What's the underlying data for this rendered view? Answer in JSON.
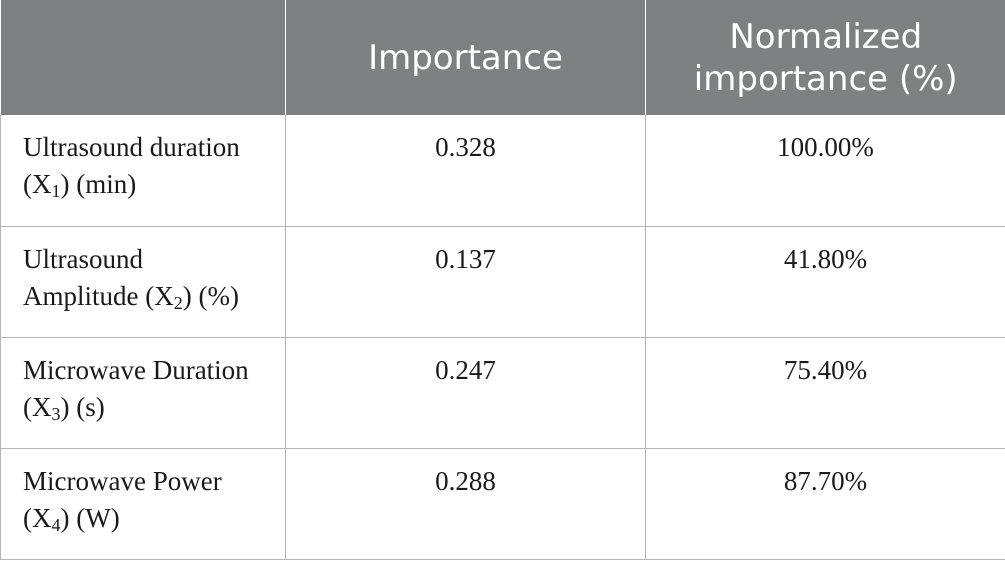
{
  "table": {
    "headers": [
      "",
      "Importance",
      "Normalized importance (%)"
    ],
    "rows": [
      {
        "label_pre": "Ultrasound duration",
        "label_post_open": "(X",
        "subscript": "1",
        "label_post_close": ") (min)",
        "importance": "0.328",
        "normalized": "100.00%"
      },
      {
        "label_pre": "Ultrasound",
        "label_post_open": "Amplitude (X",
        "subscript": "2",
        "label_post_close": ") (%)",
        "importance": "0.137",
        "normalized": "41.80%"
      },
      {
        "label_pre": "Microwave Duration",
        "label_post_open": "(X",
        "subscript": "3",
        "label_post_close": ") (s)",
        "importance": "0.247",
        "normalized": "75.40%"
      },
      {
        "label_pre": "Microwave Power",
        "label_post_open": "(X",
        "subscript": "4",
        "label_post_close": ") (W)",
        "importance": "0.288",
        "normalized": "87.70%"
      }
    ]
  },
  "colors": {
    "header_bg": "#7f8081",
    "header_text": "#ffffff",
    "border": "#b5b5b5"
  }
}
